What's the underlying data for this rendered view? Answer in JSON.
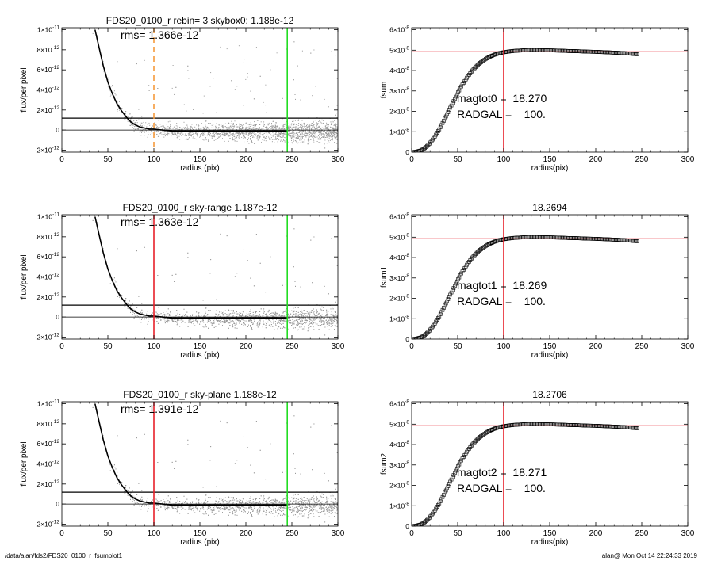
{
  "footer": {
    "path": "/data/alan/fds2/FDS20_0100_r_fsumplot1",
    "stamp": "alan@  Mon Oct 14 22:24:33 2019"
  },
  "colors": {
    "axis": "#000000",
    "scatter": "#999999",
    "profile": "#000000",
    "red": "#e8202a",
    "green": "#22dd22",
    "orange": "#f59a3c",
    "open_marker": "#000000"
  },
  "chart_data": [
    {
      "type": "scatter",
      "panel": "left-1",
      "title": "FDS20_0100_r rebin= 3    skybox0:  1.188e-12",
      "annotation": "rms= 1.366e-12",
      "xlabel": "radius (pix)",
      "ylabel": "flux/per pixel",
      "xlim": [
        0,
        300
      ],
      "ylim": [
        -2.2e-12,
        1.02e-11
      ],
      "xticks": [
        "0",
        "50",
        "100",
        "150",
        "200",
        "250",
        "300"
      ],
      "yticks": [
        {
          "value": 1e-11,
          "mant": "1×10",
          "exp": "-11"
        },
        {
          "value": 8e-12,
          "mant": "8×10",
          "exp": "-12"
        },
        {
          "value": 6e-12,
          "mant": "6×10",
          "exp": "-12"
        },
        {
          "value": 4e-12,
          "mant": "4×10",
          "exp": "-12"
        },
        {
          "value": 2e-12,
          "mant": "2×10",
          "exp": "-12"
        },
        {
          "value": 0,
          "mant": "0",
          "exp": ""
        },
        {
          "value": -2e-12,
          "mant": "-2×10",
          "exp": "-12"
        }
      ],
      "hlines": [
        {
          "y": 1.188e-12,
          "color": "black"
        },
        {
          "y": 0,
          "color": "black"
        }
      ],
      "vlines": [
        {
          "x": 100,
          "color": "orange",
          "dashed": true
        },
        {
          "x": 245,
          "color": "green"
        }
      ],
      "profile": [
        [
          36,
          1e-11
        ],
        [
          40,
          8.4e-12
        ],
        [
          45,
          6.4e-12
        ],
        [
          50,
          4.8e-12
        ],
        [
          55,
          3.6e-12
        ],
        [
          60,
          2.6e-12
        ],
        [
          65,
          1.9e-12
        ],
        [
          70,
          1.3e-12
        ],
        [
          75,
          8e-13
        ],
        [
          80,
          5e-13
        ],
        [
          85,
          3e-13
        ],
        [
          90,
          2e-13
        ],
        [
          95,
          1e-13
        ],
        [
          100,
          1e-13
        ],
        [
          120,
          -1e-13
        ],
        [
          150,
          -1e-13
        ],
        [
          200,
          -1e-13
        ],
        [
          245,
          -1e-13
        ]
      ]
    },
    {
      "type": "line",
      "panel": "right-1",
      "title": "",
      "annotations": [
        "magtot0 =  18.270",
        "RADGAL =    100."
      ],
      "xlabel": "radius(pix)",
      "ylabel": "fsum",
      "xlim": [
        0,
        300
      ],
      "ylim": [
        0,
        6.1e-08
      ],
      "xticks": [
        "0",
        "50",
        "100",
        "150",
        "200",
        "250",
        "300"
      ],
      "yticks": [
        {
          "value": 6e-08,
          "mant": "6×10",
          "exp": "-8"
        },
        {
          "value": 5e-08,
          "mant": "5×10",
          "exp": "-8"
        },
        {
          "value": 4e-08,
          "mant": "4×10",
          "exp": "-8"
        },
        {
          "value": 3e-08,
          "mant": "3×10",
          "exp": "-8"
        },
        {
          "value": 2e-08,
          "mant": "2×10",
          "exp": "-8"
        },
        {
          "value": 1e-08,
          "mant": "1×10",
          "exp": "-8"
        },
        {
          "value": 0,
          "mant": "0",
          "exp": ""
        }
      ],
      "hlines": [
        {
          "y": 4.92e-08,
          "color": "red"
        }
      ],
      "vlines": [
        {
          "x": 100,
          "color": "red"
        }
      ],
      "curve": [
        [
          0,
          0
        ],
        [
          5,
          2e-10
        ],
        [
          10,
          8e-10
        ],
        [
          15,
          2.2e-09
        ],
        [
          20,
          4.5e-09
        ],
        [
          25,
          7.5e-09
        ],
        [
          30,
          1.12e-08
        ],
        [
          35,
          1.55e-08
        ],
        [
          40,
          2e-08
        ],
        [
          45,
          2.45e-08
        ],
        [
          50,
          2.9e-08
        ],
        [
          55,
          3.3e-08
        ],
        [
          60,
          3.65e-08
        ],
        [
          65,
          3.95e-08
        ],
        [
          70,
          4.2e-08
        ],
        [
          75,
          4.4e-08
        ],
        [
          80,
          4.56e-08
        ],
        [
          85,
          4.68e-08
        ],
        [
          90,
          4.78e-08
        ],
        [
          95,
          4.85e-08
        ],
        [
          100,
          4.9e-08
        ],
        [
          110,
          4.96e-08
        ],
        [
          120,
          4.99e-08
        ],
        [
          130,
          5.01e-08
        ],
        [
          140,
          5e-08
        ],
        [
          150,
          4.99e-08
        ],
        [
          160,
          4.98e-08
        ],
        [
          170,
          4.96e-08
        ],
        [
          180,
          4.95e-08
        ],
        [
          190,
          4.93e-08
        ],
        [
          200,
          4.92e-08
        ],
        [
          210,
          4.9e-08
        ],
        [
          220,
          4.88e-08
        ],
        [
          230,
          4.86e-08
        ],
        [
          240,
          4.82e-08
        ],
        [
          245,
          4.8e-08
        ]
      ]
    },
    {
      "type": "scatter",
      "panel": "left-2",
      "title": "FDS20_0100_r sky-range  1.187e-12",
      "annotation": "rms= 1.363e-12",
      "xlabel": "radius (pix)",
      "ylabel": "flux/per pixel",
      "xlim": [
        0,
        300
      ],
      "ylim": [
        -2.2e-12,
        1.02e-11
      ],
      "xticks": [
        "0",
        "50",
        "100",
        "150",
        "200",
        "250",
        "300"
      ],
      "yticks": [
        {
          "value": 1e-11,
          "mant": "1×10",
          "exp": "-11"
        },
        {
          "value": 8e-12,
          "mant": "8×10",
          "exp": "-12"
        },
        {
          "value": 6e-12,
          "mant": "6×10",
          "exp": "-12"
        },
        {
          "value": 4e-12,
          "mant": "4×10",
          "exp": "-12"
        },
        {
          "value": 2e-12,
          "mant": "2×10",
          "exp": "-12"
        },
        {
          "value": 0,
          "mant": "0",
          "exp": ""
        },
        {
          "value": -2e-12,
          "mant": "-2×10",
          "exp": "-12"
        }
      ],
      "hlines": [
        {
          "y": 1.187e-12,
          "color": "black"
        },
        {
          "y": 0,
          "color": "black"
        }
      ],
      "vlines": [
        {
          "x": 100,
          "color": "red"
        },
        {
          "x": 245,
          "color": "green"
        }
      ],
      "profile": [
        [
          36,
          1e-11
        ],
        [
          40,
          8.4e-12
        ],
        [
          45,
          6.4e-12
        ],
        [
          50,
          4.8e-12
        ],
        [
          55,
          3.6e-12
        ],
        [
          60,
          2.6e-12
        ],
        [
          65,
          1.9e-12
        ],
        [
          70,
          1.3e-12
        ],
        [
          75,
          8e-13
        ],
        [
          80,
          5e-13
        ],
        [
          85,
          3e-13
        ],
        [
          90,
          2e-13
        ],
        [
          95,
          1e-13
        ],
        [
          100,
          1e-13
        ],
        [
          120,
          -1e-13
        ],
        [
          150,
          -1e-13
        ],
        [
          200,
          -1e-13
        ],
        [
          245,
          -1e-13
        ]
      ]
    },
    {
      "type": "line",
      "panel": "right-2",
      "title": "18.2694",
      "annotations": [
        "magtot1 =  18.269",
        "RADGAL =    100."
      ],
      "xlabel": "radius(pix)",
      "ylabel": "fsum1",
      "xlim": [
        0,
        300
      ],
      "ylim": [
        0,
        6.1e-08
      ],
      "xticks": [
        "0",
        "50",
        "100",
        "150",
        "200",
        "250",
        "300"
      ],
      "yticks": [
        {
          "value": 6e-08,
          "mant": "6×10",
          "exp": "-8"
        },
        {
          "value": 5e-08,
          "mant": "5×10",
          "exp": "-8"
        },
        {
          "value": 4e-08,
          "mant": "4×10",
          "exp": "-8"
        },
        {
          "value": 3e-08,
          "mant": "3×10",
          "exp": "-8"
        },
        {
          "value": 2e-08,
          "mant": "2×10",
          "exp": "-8"
        },
        {
          "value": 1e-08,
          "mant": "1×10",
          "exp": "-8"
        },
        {
          "value": 0,
          "mant": "0",
          "exp": ""
        }
      ],
      "hlines": [
        {
          "y": 4.92e-08,
          "color": "red"
        }
      ],
      "vlines": [
        {
          "x": 100,
          "color": "red"
        }
      ],
      "curve": [
        [
          0,
          0
        ],
        [
          5,
          2e-10
        ],
        [
          10,
          8e-10
        ],
        [
          15,
          2.2e-09
        ],
        [
          20,
          4.5e-09
        ],
        [
          25,
          7.5e-09
        ],
        [
          30,
          1.12e-08
        ],
        [
          35,
          1.55e-08
        ],
        [
          40,
          2e-08
        ],
        [
          45,
          2.45e-08
        ],
        [
          50,
          2.9e-08
        ],
        [
          55,
          3.3e-08
        ],
        [
          60,
          3.65e-08
        ],
        [
          65,
          3.95e-08
        ],
        [
          70,
          4.2e-08
        ],
        [
          75,
          4.4e-08
        ],
        [
          80,
          4.56e-08
        ],
        [
          85,
          4.68e-08
        ],
        [
          90,
          4.78e-08
        ],
        [
          95,
          4.85e-08
        ],
        [
          100,
          4.9e-08
        ],
        [
          110,
          4.96e-08
        ],
        [
          120,
          4.99e-08
        ],
        [
          130,
          5.01e-08
        ],
        [
          140,
          5e-08
        ],
        [
          150,
          4.99e-08
        ],
        [
          160,
          4.98e-08
        ],
        [
          170,
          4.96e-08
        ],
        [
          180,
          4.95e-08
        ],
        [
          190,
          4.93e-08
        ],
        [
          200,
          4.92e-08
        ],
        [
          210,
          4.9e-08
        ],
        [
          220,
          4.88e-08
        ],
        [
          230,
          4.86e-08
        ],
        [
          240,
          4.82e-08
        ],
        [
          245,
          4.8e-08
        ]
      ]
    },
    {
      "type": "scatter",
      "panel": "left-3",
      "title": "FDS20_0100_r sky-plane  1.188e-12",
      "annotation": "rms= 1.391e-12",
      "xlabel": "radius (pix)",
      "ylabel": "flux/per pixel",
      "xlim": [
        0,
        300
      ],
      "ylim": [
        -2.2e-12,
        1.02e-11
      ],
      "xticks": [
        "0",
        "50",
        "100",
        "150",
        "200",
        "250",
        "300"
      ],
      "yticks": [
        {
          "value": 1e-11,
          "mant": "1×10",
          "exp": "-11"
        },
        {
          "value": 8e-12,
          "mant": "8×10",
          "exp": "-12"
        },
        {
          "value": 6e-12,
          "mant": "6×10",
          "exp": "-12"
        },
        {
          "value": 4e-12,
          "mant": "4×10",
          "exp": "-12"
        },
        {
          "value": 2e-12,
          "mant": "2×10",
          "exp": "-12"
        },
        {
          "value": 0,
          "mant": "0",
          "exp": ""
        },
        {
          "value": -2e-12,
          "mant": "-2×10",
          "exp": "-12"
        }
      ],
      "hlines": [
        {
          "y": 1.188e-12,
          "color": "black"
        },
        {
          "y": 0,
          "color": "black"
        }
      ],
      "vlines": [
        {
          "x": 100,
          "color": "red"
        },
        {
          "x": 245,
          "color": "green"
        }
      ],
      "profile": [
        [
          36,
          1e-11
        ],
        [
          40,
          8.4e-12
        ],
        [
          45,
          6.4e-12
        ],
        [
          50,
          4.8e-12
        ],
        [
          55,
          3.6e-12
        ],
        [
          60,
          2.6e-12
        ],
        [
          65,
          1.9e-12
        ],
        [
          70,
          1.3e-12
        ],
        [
          75,
          8e-13
        ],
        [
          80,
          5e-13
        ],
        [
          85,
          3e-13
        ],
        [
          90,
          2e-13
        ],
        [
          95,
          1e-13
        ],
        [
          100,
          1e-13
        ],
        [
          120,
          -1e-13
        ],
        [
          150,
          -1e-13
        ],
        [
          200,
          -1e-13
        ],
        [
          245,
          -1e-13
        ]
      ]
    },
    {
      "type": "line",
      "panel": "right-3",
      "title": "18.2706",
      "annotations": [
        "magtot2 =  18.271",
        "RADGAL =    100."
      ],
      "xlabel": "radius(pix)",
      "ylabel": "fsum2",
      "xlim": [
        0,
        300
      ],
      "ylim": [
        0,
        6.1e-08
      ],
      "xticks": [
        "0",
        "50",
        "100",
        "150",
        "200",
        "250",
        "300"
      ],
      "yticks": [
        {
          "value": 6e-08,
          "mant": "6×10",
          "exp": "-8"
        },
        {
          "value": 5e-08,
          "mant": "5×10",
          "exp": "-8"
        },
        {
          "value": 4e-08,
          "mant": "4×10",
          "exp": "-8"
        },
        {
          "value": 3e-08,
          "mant": "3×10",
          "exp": "-8"
        },
        {
          "value": 2e-08,
          "mant": "2×10",
          "exp": "-8"
        },
        {
          "value": 1e-08,
          "mant": "1×10",
          "exp": "-8"
        },
        {
          "value": 0,
          "mant": "0",
          "exp": ""
        }
      ],
      "hlines": [
        {
          "y": 4.92e-08,
          "color": "red"
        }
      ],
      "vlines": [
        {
          "x": 100,
          "color": "red"
        }
      ],
      "curve": [
        [
          0,
          0
        ],
        [
          5,
          2e-10
        ],
        [
          10,
          8e-10
        ],
        [
          15,
          2.2e-09
        ],
        [
          20,
          4.5e-09
        ],
        [
          25,
          7.5e-09
        ],
        [
          30,
          1.12e-08
        ],
        [
          35,
          1.55e-08
        ],
        [
          40,
          2e-08
        ],
        [
          45,
          2.45e-08
        ],
        [
          50,
          2.9e-08
        ],
        [
          55,
          3.3e-08
        ],
        [
          60,
          3.65e-08
        ],
        [
          65,
          3.95e-08
        ],
        [
          70,
          4.2e-08
        ],
        [
          75,
          4.4e-08
        ],
        [
          80,
          4.56e-08
        ],
        [
          85,
          4.68e-08
        ],
        [
          90,
          4.78e-08
        ],
        [
          95,
          4.85e-08
        ],
        [
          100,
          4.9e-08
        ],
        [
          110,
          4.96e-08
        ],
        [
          120,
          4.99e-08
        ],
        [
          130,
          5.01e-08
        ],
        [
          140,
          5e-08
        ],
        [
          150,
          4.99e-08
        ],
        [
          160,
          4.98e-08
        ],
        [
          170,
          4.96e-08
        ],
        [
          180,
          4.95e-08
        ],
        [
          190,
          4.93e-08
        ],
        [
          200,
          4.92e-08
        ],
        [
          210,
          4.9e-08
        ],
        [
          220,
          4.88e-08
        ],
        [
          230,
          4.86e-08
        ],
        [
          240,
          4.82e-08
        ],
        [
          245,
          4.8e-08
        ]
      ]
    }
  ]
}
